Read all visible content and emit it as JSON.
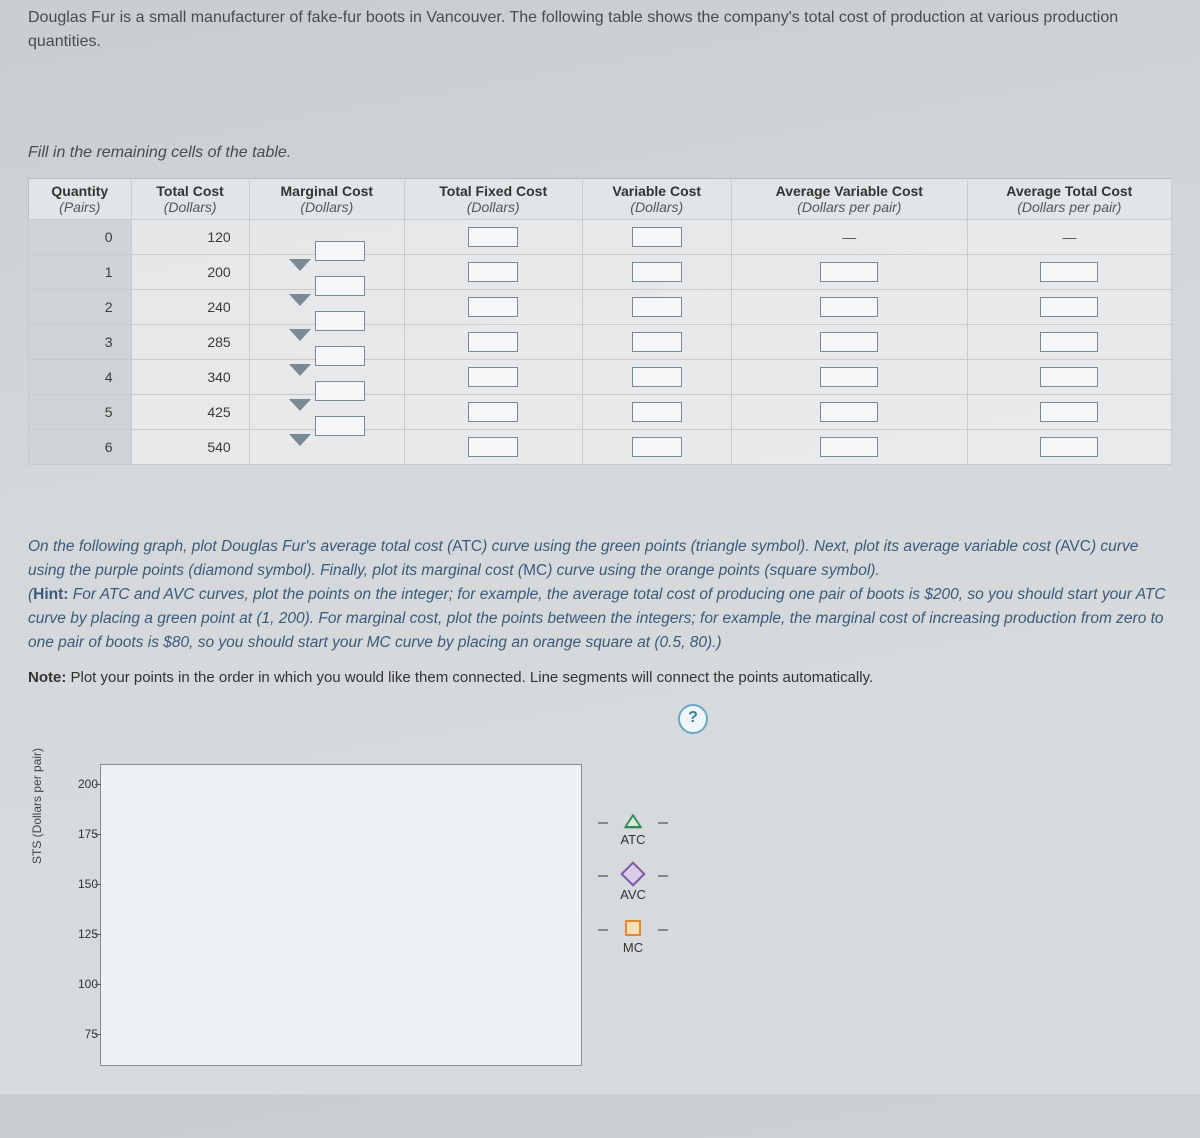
{
  "intro": "Douglas Fur is a small manufacturer of fake-fur boots in Vancouver. The following table shows the company's total cost of production at various production quantities.",
  "fill_instruction": "Fill in the remaining cells of the table.",
  "table": {
    "headers": [
      {
        "title": "Quantity",
        "unit": "(Pairs)"
      },
      {
        "title": "Total Cost",
        "unit": "(Dollars)"
      },
      {
        "title": "Marginal Cost",
        "unit": "(Dollars)"
      },
      {
        "title": "Total Fixed Cost",
        "unit": "(Dollars)"
      },
      {
        "title": "Variable Cost",
        "unit": "(Dollars)"
      },
      {
        "title": "Average Variable Cost",
        "unit": "(Dollars per pair)"
      },
      {
        "title": "Average Total Cost",
        "unit": "(Dollars per pair)"
      }
    ],
    "rows": [
      {
        "q": "0",
        "tc": "120",
        "dash_avc": true,
        "dash_atc": true
      },
      {
        "q": "1",
        "tc": "200"
      },
      {
        "q": "2",
        "tc": "240"
      },
      {
        "q": "3",
        "tc": "285"
      },
      {
        "q": "4",
        "tc": "340"
      },
      {
        "q": "5",
        "tc": "425"
      },
      {
        "q": "6",
        "tc": "540"
      }
    ],
    "dash": "—"
  },
  "graph_instructions": {
    "p1a": "On the following graph, plot Douglas Fur's average total cost (",
    "atc": "ATC",
    "p1b": ") curve using the green points (triangle symbol). Next, plot its average variable cost (",
    "avc": "AVC",
    "p1c": ") curve using the purple points (diamond symbol). Finally, plot its marginal cost (",
    "mc": "MC",
    "p1d": ") curve using the orange points (square symbol).",
    "hint_label": "Hint:",
    "hint": " For ATC and AVC curves, plot the points on the integer; for example, the average total cost of producing one pair of boots is $200, so you should start your ATC curve by placing a green point at (1, 200). For marginal cost, plot the points between the integers; for example, the marginal cost of increasing production from zero to one pair of boots is $80, so you should start your MC curve by placing an orange square at (0.5, 80).)",
    "note_label": "Note:",
    "note": " Plot your points in the order in which you would like them connected. Line segments will connect the points automatically."
  },
  "chart": {
    "ylabel": "STS (Dollars per pair)",
    "yticks": [
      200,
      175,
      150,
      125,
      100,
      75
    ],
    "legend": [
      {
        "label": "ATC",
        "shape": "triangle",
        "stroke": "#2e8b57",
        "fill": "#d6ead8"
      },
      {
        "label": "AVC",
        "shape": "diamond",
        "stroke": "#7a5aa6",
        "fill": "#d8cce8"
      },
      {
        "label": "MC",
        "shape": "square",
        "stroke": "#e08a2e",
        "fill": "#f9dfb8"
      }
    ],
    "help": "?"
  }
}
